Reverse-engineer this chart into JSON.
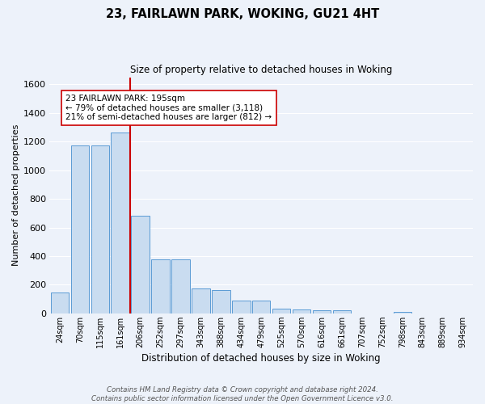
{
  "title1": "23, FAIRLAWN PARK, WOKING, GU21 4HT",
  "title2": "Size of property relative to detached houses in Woking",
  "xlabel": "Distribution of detached houses by size in Woking",
  "ylabel": "Number of detached properties",
  "bar_labels": [
    "24sqm",
    "70sqm",
    "115sqm",
    "161sqm",
    "206sqm",
    "252sqm",
    "297sqm",
    "343sqm",
    "388sqm",
    "434sqm",
    "479sqm",
    "525sqm",
    "570sqm",
    "616sqm",
    "661sqm",
    "707sqm",
    "752sqm",
    "798sqm",
    "843sqm",
    "889sqm",
    "934sqm"
  ],
  "bar_values": [
    148,
    1175,
    1175,
    1265,
    680,
    375,
    375,
    175,
    165,
    88,
    88,
    35,
    25,
    20,
    20,
    0,
    0,
    12,
    0,
    0,
    0
  ],
  "bar_color": "#c9dcf0",
  "bar_edge_color": "#5b9bd5",
  "vline_color": "#cc0000",
  "annotation_text": "23 FAIRLAWN PARK: 195sqm\n← 79% of detached houses are smaller (3,118)\n21% of semi-detached houses are larger (812) →",
  "annotation_box_color": "white",
  "annotation_box_edge": "#cc0000",
  "footer": "Contains HM Land Registry data © Crown copyright and database right 2024.\nContains public sector information licensed under the Open Government Licence v3.0.",
  "ylim": [
    0,
    1650
  ],
  "background_color": "#edf2fa",
  "grid_color": "#ffffff"
}
